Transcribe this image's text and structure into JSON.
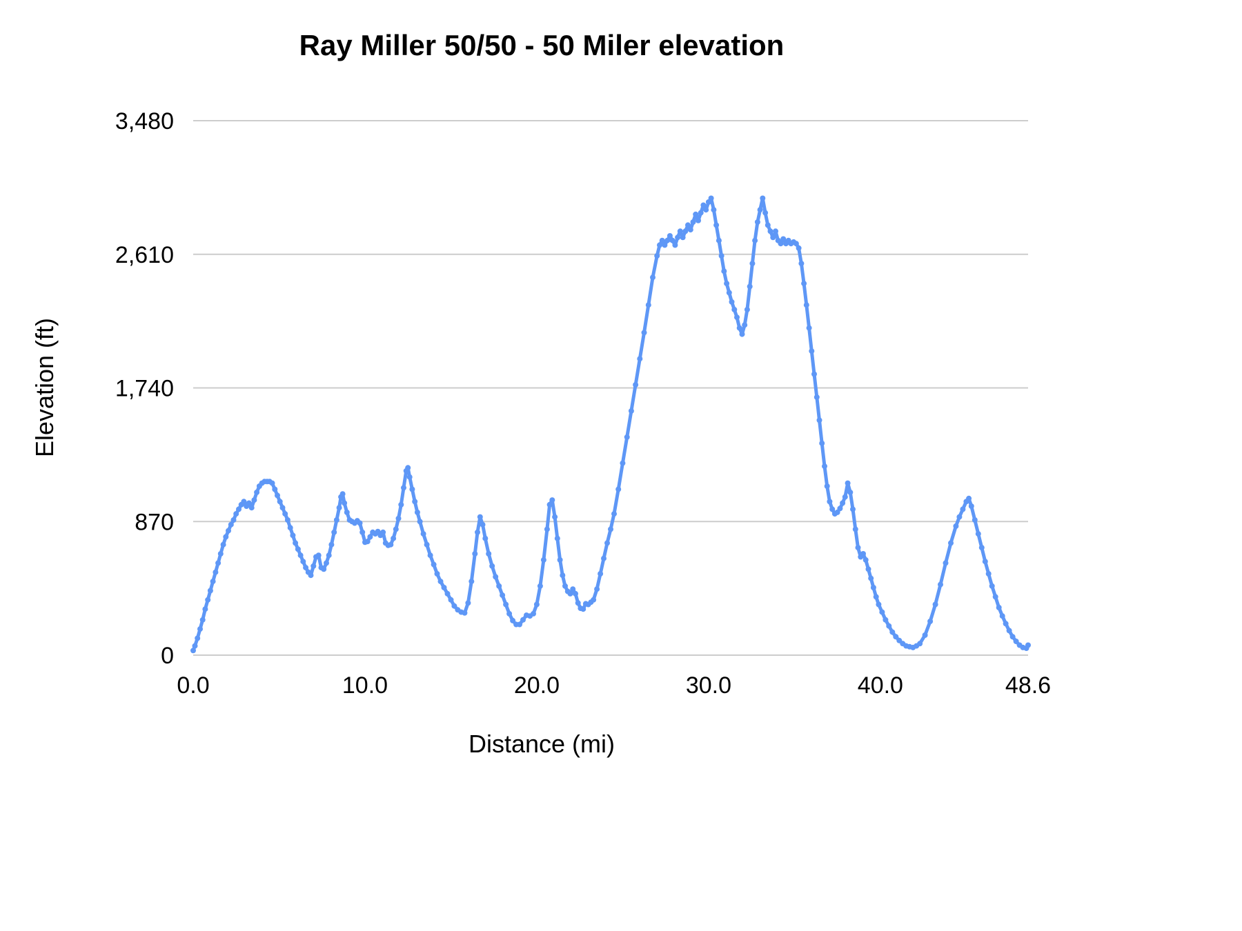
{
  "chart": {
    "title": "Ray Miller 50/50 - 50 Miler elevation",
    "xlabel": "Distance (mi)",
    "ylabel": "Elevation (ft)"
  },
  "chart_data": {
    "type": "line",
    "title": "Ray Miller 50/50 - 50 Miler elevation",
    "xlabel": "Distance (mi)",
    "ylabel": "Elevation (ft)",
    "xlim": [
      0,
      48.6
    ],
    "ylim": [
      0,
      3480
    ],
    "x_ticks": [
      0,
      10,
      20,
      30,
      40,
      48.6
    ],
    "x_tick_labels": [
      "0.0",
      "10.0",
      "20.0",
      "30.0",
      "40.0",
      "48.6"
    ],
    "y_ticks": [
      0,
      870,
      1740,
      2610,
      3480
    ],
    "y_tick_labels": [
      "0",
      "870",
      "1,740",
      "2,610",
      "3,480"
    ],
    "grid": "horizontal",
    "legend": "none",
    "line_color": "#5e97f6",
    "series": [
      {
        "name": "Elevation",
        "points": [
          [
            0.0,
            30
          ],
          [
            0.1,
            60
          ],
          [
            0.25,
            110
          ],
          [
            0.4,
            170
          ],
          [
            0.55,
            230
          ],
          [
            0.7,
            300
          ],
          [
            0.85,
            360
          ],
          [
            1.0,
            420
          ],
          [
            1.15,
            480
          ],
          [
            1.3,
            540
          ],
          [
            1.45,
            600
          ],
          [
            1.6,
            660
          ],
          [
            1.75,
            720
          ],
          [
            1.9,
            770
          ],
          [
            2.05,
            810
          ],
          [
            2.2,
            850
          ],
          [
            2.35,
            880
          ],
          [
            2.5,
            920
          ],
          [
            2.65,
            950
          ],
          [
            2.8,
            980
          ],
          [
            2.95,
            1000
          ],
          [
            3.1,
            970
          ],
          [
            3.25,
            990
          ],
          [
            3.4,
            960
          ],
          [
            3.55,
            1010
          ],
          [
            3.7,
            1060
          ],
          [
            3.85,
            1100
          ],
          [
            4.0,
            1120
          ],
          [
            4.15,
            1130
          ],
          [
            4.3,
            1130
          ],
          [
            4.45,
            1130
          ],
          [
            4.6,
            1120
          ],
          [
            4.75,
            1080
          ],
          [
            4.9,
            1040
          ],
          [
            5.05,
            1000
          ],
          [
            5.2,
            960
          ],
          [
            5.35,
            920
          ],
          [
            5.5,
            880
          ],
          [
            5.65,
            830
          ],
          [
            5.8,
            780
          ],
          [
            5.95,
            730
          ],
          [
            6.1,
            690
          ],
          [
            6.25,
            650
          ],
          [
            6.4,
            610
          ],
          [
            6.55,
            570
          ],
          [
            6.7,
            540
          ],
          [
            6.85,
            520
          ],
          [
            7.0,
            580
          ],
          [
            7.15,
            640
          ],
          [
            7.3,
            650
          ],
          [
            7.45,
            570
          ],
          [
            7.6,
            560
          ],
          [
            7.75,
            600
          ],
          [
            7.9,
            650
          ],
          [
            8.05,
            720
          ],
          [
            8.2,
            800
          ],
          [
            8.35,
            880
          ],
          [
            8.5,
            960
          ],
          [
            8.6,
            1030
          ],
          [
            8.7,
            1050
          ],
          [
            8.8,
            990
          ],
          [
            8.95,
            930
          ],
          [
            9.1,
            880
          ],
          [
            9.25,
            870
          ],
          [
            9.4,
            860
          ],
          [
            9.55,
            875
          ],
          [
            9.7,
            860
          ],
          [
            9.85,
            800
          ],
          [
            10.0,
            735
          ],
          [
            10.15,
            740
          ],
          [
            10.3,
            770
          ],
          [
            10.45,
            800
          ],
          [
            10.6,
            790
          ],
          [
            10.75,
            805
          ],
          [
            10.9,
            780
          ],
          [
            11.05,
            800
          ],
          [
            11.2,
            730
          ],
          [
            11.35,
            715
          ],
          [
            11.5,
            720
          ],
          [
            11.65,
            760
          ],
          [
            11.8,
            820
          ],
          [
            11.95,
            890
          ],
          [
            12.1,
            980
          ],
          [
            12.25,
            1090
          ],
          [
            12.4,
            1200
          ],
          [
            12.5,
            1220
          ],
          [
            12.6,
            1160
          ],
          [
            12.75,
            1080
          ],
          [
            12.9,
            1000
          ],
          [
            13.05,
            930
          ],
          [
            13.2,
            870
          ],
          [
            13.4,
            790
          ],
          [
            13.6,
            720
          ],
          [
            13.8,
            650
          ],
          [
            14.0,
            590
          ],
          [
            14.2,
            530
          ],
          [
            14.4,
            480
          ],
          [
            14.6,
            440
          ],
          [
            14.8,
            400
          ],
          [
            15.0,
            360
          ],
          [
            15.2,
            320
          ],
          [
            15.4,
            295
          ],
          [
            15.6,
            280
          ],
          [
            15.8,
            275
          ],
          [
            16.0,
            340
          ],
          [
            16.2,
            480
          ],
          [
            16.4,
            660
          ],
          [
            16.55,
            800
          ],
          [
            16.7,
            900
          ],
          [
            16.85,
            850
          ],
          [
            17.0,
            760
          ],
          [
            17.2,
            660
          ],
          [
            17.4,
            580
          ],
          [
            17.6,
            510
          ],
          [
            17.8,
            450
          ],
          [
            18.0,
            390
          ],
          [
            18.2,
            330
          ],
          [
            18.4,
            270
          ],
          [
            18.6,
            225
          ],
          [
            18.8,
            200
          ],
          [
            19.0,
            200
          ],
          [
            19.2,
            230
          ],
          [
            19.4,
            260
          ],
          [
            19.6,
            255
          ],
          [
            19.8,
            270
          ],
          [
            20.0,
            330
          ],
          [
            20.2,
            450
          ],
          [
            20.4,
            620
          ],
          [
            20.6,
            820
          ],
          [
            20.75,
            980
          ],
          [
            20.9,
            1010
          ],
          [
            21.05,
            900
          ],
          [
            21.2,
            760
          ],
          [
            21.35,
            620
          ],
          [
            21.5,
            520
          ],
          [
            21.65,
            450
          ],
          [
            21.8,
            415
          ],
          [
            21.95,
            400
          ],
          [
            22.1,
            430
          ],
          [
            22.25,
            400
          ],
          [
            22.4,
            340
          ],
          [
            22.55,
            305
          ],
          [
            22.7,
            300
          ],
          [
            22.85,
            335
          ],
          [
            23.0,
            330
          ],
          [
            23.15,
            345
          ],
          [
            23.3,
            360
          ],
          [
            23.5,
            430
          ],
          [
            23.7,
            530
          ],
          [
            23.9,
            630
          ],
          [
            24.1,
            730
          ],
          [
            24.3,
            820
          ],
          [
            24.5,
            920
          ],
          [
            24.75,
            1080
          ],
          [
            25.0,
            1250
          ],
          [
            25.25,
            1420
          ],
          [
            25.5,
            1590
          ],
          [
            25.75,
            1760
          ],
          [
            26.0,
            1930
          ],
          [
            26.25,
            2100
          ],
          [
            26.5,
            2280
          ],
          [
            26.75,
            2460
          ],
          [
            27.0,
            2600
          ],
          [
            27.15,
            2670
          ],
          [
            27.3,
            2700
          ],
          [
            27.45,
            2670
          ],
          [
            27.6,
            2700
          ],
          [
            27.75,
            2730
          ],
          [
            27.9,
            2700
          ],
          [
            28.05,
            2670
          ],
          [
            28.2,
            2720
          ],
          [
            28.35,
            2760
          ],
          [
            28.5,
            2720
          ],
          [
            28.65,
            2760
          ],
          [
            28.8,
            2800
          ],
          [
            28.95,
            2770
          ],
          [
            29.1,
            2820
          ],
          [
            29.25,
            2870
          ],
          [
            29.4,
            2830
          ],
          [
            29.55,
            2880
          ],
          [
            29.7,
            2930
          ],
          [
            29.85,
            2900
          ],
          [
            30.0,
            2950
          ],
          [
            30.15,
            2975
          ],
          [
            30.3,
            2900
          ],
          [
            30.45,
            2800
          ],
          [
            30.6,
            2700
          ],
          [
            30.75,
            2600
          ],
          [
            30.9,
            2500
          ],
          [
            31.05,
            2420
          ],
          [
            31.2,
            2360
          ],
          [
            31.35,
            2300
          ],
          [
            31.5,
            2250
          ],
          [
            31.65,
            2200
          ],
          [
            31.8,
            2130
          ],
          [
            31.95,
            2090
          ],
          [
            32.1,
            2150
          ],
          [
            32.25,
            2250
          ],
          [
            32.4,
            2400
          ],
          [
            32.55,
            2550
          ],
          [
            32.7,
            2700
          ],
          [
            32.85,
            2820
          ],
          [
            33.0,
            2900
          ],
          [
            33.15,
            2975
          ],
          [
            33.3,
            2880
          ],
          [
            33.45,
            2800
          ],
          [
            33.6,
            2760
          ],
          [
            33.75,
            2720
          ],
          [
            33.9,
            2760
          ],
          [
            34.05,
            2700
          ],
          [
            34.2,
            2680
          ],
          [
            34.35,
            2710
          ],
          [
            34.5,
            2680
          ],
          [
            34.65,
            2700
          ],
          [
            34.8,
            2680
          ],
          [
            34.95,
            2690
          ],
          [
            35.1,
            2680
          ],
          [
            35.25,
            2650
          ],
          [
            35.4,
            2550
          ],
          [
            35.55,
            2420
          ],
          [
            35.7,
            2280
          ],
          [
            35.85,
            2130
          ],
          [
            36.0,
            1980
          ],
          [
            36.15,
            1830
          ],
          [
            36.3,
            1680
          ],
          [
            36.45,
            1530
          ],
          [
            36.6,
            1380
          ],
          [
            36.75,
            1230
          ],
          [
            36.9,
            1100
          ],
          [
            37.05,
            1000
          ],
          [
            37.2,
            950
          ],
          [
            37.35,
            920
          ],
          [
            37.5,
            930
          ],
          [
            37.65,
            955
          ],
          [
            37.8,
            990
          ],
          [
            37.95,
            1030
          ],
          [
            38.1,
            1120
          ],
          [
            38.25,
            1060
          ],
          [
            38.4,
            950
          ],
          [
            38.55,
            820
          ],
          [
            38.7,
            700
          ],
          [
            38.85,
            640
          ],
          [
            39.0,
            660
          ],
          [
            39.15,
            620
          ],
          [
            39.3,
            560
          ],
          [
            39.45,
            500
          ],
          [
            39.6,
            440
          ],
          [
            39.75,
            380
          ],
          [
            39.9,
            330
          ],
          [
            40.1,
            280
          ],
          [
            40.3,
            230
          ],
          [
            40.5,
            190
          ],
          [
            40.7,
            150
          ],
          [
            40.9,
            120
          ],
          [
            41.1,
            95
          ],
          [
            41.3,
            75
          ],
          [
            41.5,
            60
          ],
          [
            41.7,
            55
          ],
          [
            41.9,
            50
          ],
          [
            42.1,
            60
          ],
          [
            42.3,
            75
          ],
          [
            42.6,
            130
          ],
          [
            42.9,
            220
          ],
          [
            43.2,
            330
          ],
          [
            43.5,
            460
          ],
          [
            43.8,
            600
          ],
          [
            44.1,
            730
          ],
          [
            44.4,
            840
          ],
          [
            44.6,
            900
          ],
          [
            44.8,
            950
          ],
          [
            45.0,
            1000
          ],
          [
            45.15,
            1020
          ],
          [
            45.3,
            970
          ],
          [
            45.5,
            880
          ],
          [
            45.7,
            790
          ],
          [
            45.9,
            700
          ],
          [
            46.1,
            610
          ],
          [
            46.3,
            530
          ],
          [
            46.5,
            450
          ],
          [
            46.7,
            380
          ],
          [
            46.9,
            310
          ],
          [
            47.1,
            255
          ],
          [
            47.3,
            205
          ],
          [
            47.5,
            160
          ],
          [
            47.7,
            120
          ],
          [
            47.9,
            90
          ],
          [
            48.1,
            65
          ],
          [
            48.3,
            50
          ],
          [
            48.5,
            45
          ],
          [
            48.6,
            65
          ]
        ]
      }
    ]
  }
}
